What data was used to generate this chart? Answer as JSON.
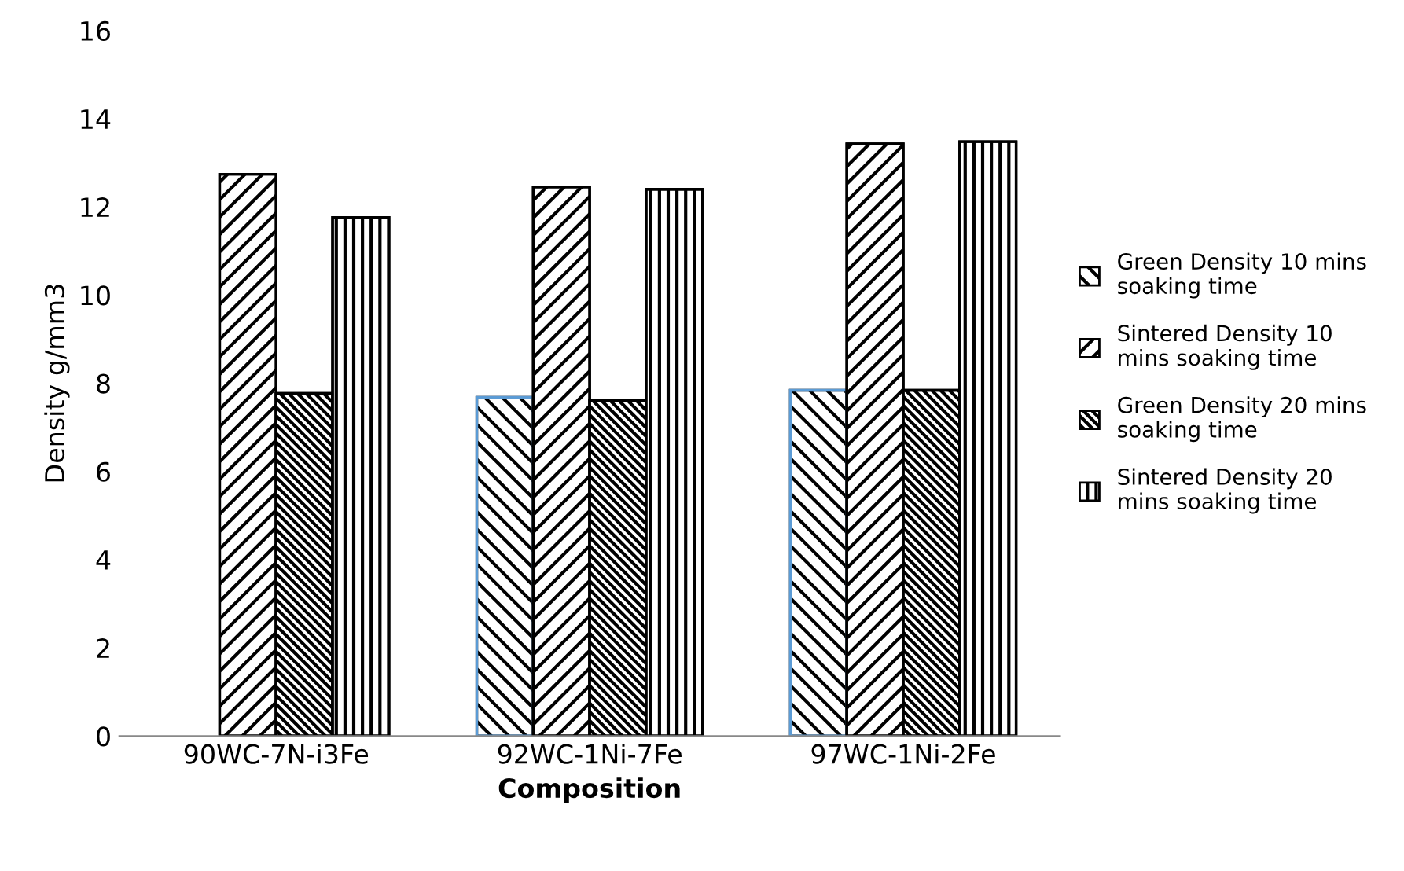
{
  "chart_data": {
    "type": "bar",
    "xlabel": "Composition",
    "ylabel": "Density g/mm3",
    "categories": [
      "90WC-7N-i3Fe",
      "92WC-1Ni-7Fe",
      "97WC-1Ni-2Fe"
    ],
    "series": [
      {
        "name": "Green Density 10 mins soaking time",
        "color": "#000000",
        "values": [
          null,
          7.68,
          7.84
        ]
      },
      {
        "name": "Sintered Density 10 mins soaking time",
        "color": "#000000",
        "values": [
          12.74,
          12.45,
          13.43
        ]
      },
      {
        "name": "Green Density 20 mins soaking time",
        "color": "#000000",
        "values": [
          7.77,
          7.61,
          7.84
        ]
      },
      {
        "name": "Sintered Density 20 mins soaking time",
        "color": "#000000",
        "values": [
          11.76,
          12.4,
          13.48
        ]
      }
    ],
    "ylim": [
      0,
      16
    ],
    "yticks": [
      0,
      2,
      4,
      6,
      8,
      10,
      12,
      14,
      16
    ],
    "grid": false,
    "legend": "right"
  }
}
